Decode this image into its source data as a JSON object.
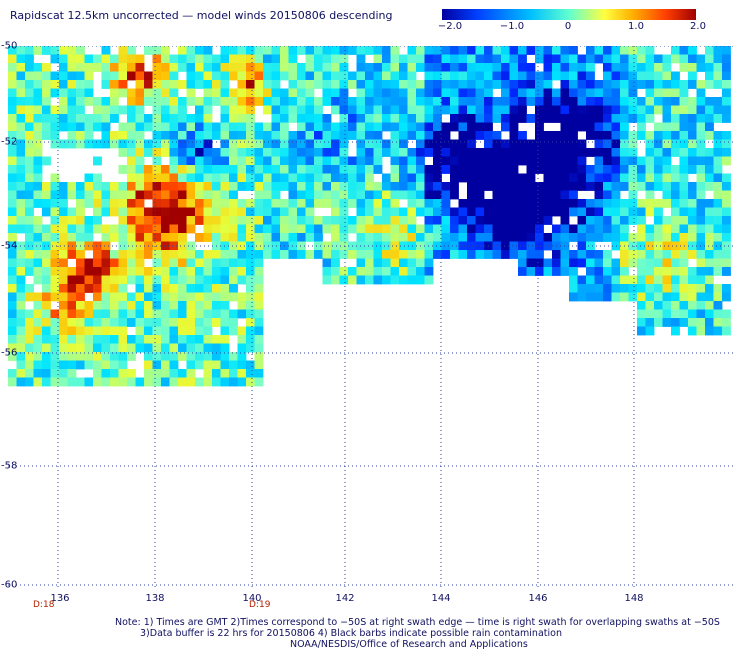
{
  "title": "Rapidscat 12.5km uncorrected — model winds 20150806 descending",
  "colorbar": {
    "ticks": [
      "−2.0",
      "−1.0",
      "0",
      "1.0",
      "2.0"
    ],
    "colors": [
      "#0000a0",
      "#0040ff",
      "#00c0ff",
      "#60ffd0",
      "#ffff40",
      "#ffb000",
      "#ff4000",
      "#a00000"
    ]
  },
  "lat_labels": [
    "-50",
    "-52",
    "-54",
    "-56",
    "-58",
    "-60"
  ],
  "lon_labels": [
    "136",
    "138",
    "140",
    "142",
    "144",
    "146",
    "148"
  ],
  "time_labels": [
    "D:18",
    "D:19"
  ],
  "notes": {
    "line1": "Note: 1) Times are GMT 2)Times correspond to −50S at right swath edge — time is right swath for overlapping swaths at −50S",
    "line2": "3)Data buffer is 22 hrs for 20150806 4) Black barbs indicate possible rain contamination",
    "line3": "NOAA/NESDIS/Office of Research and Applications"
  }
}
